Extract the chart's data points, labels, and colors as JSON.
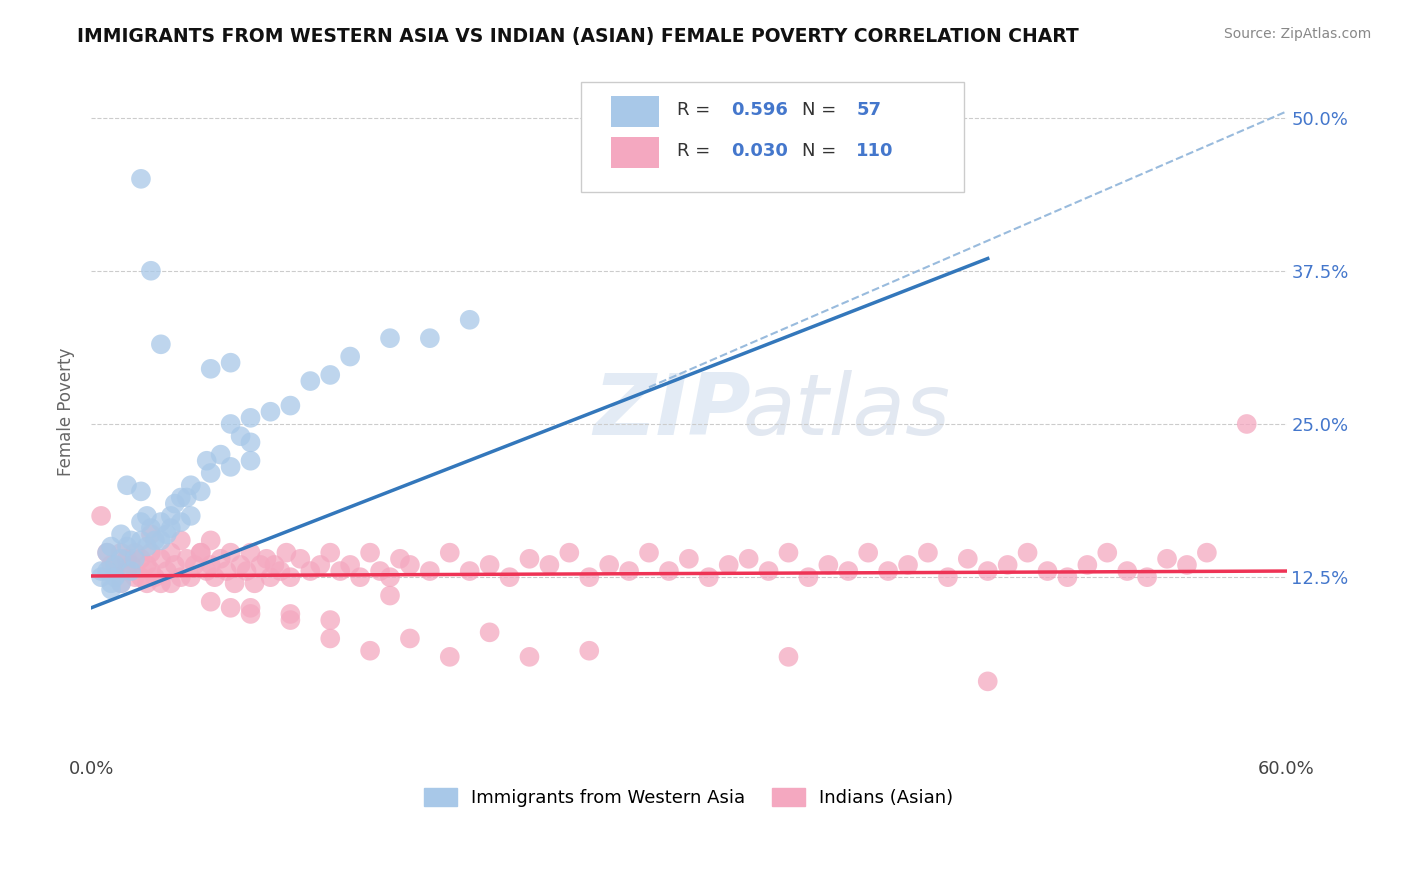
{
  "title": "IMMIGRANTS FROM WESTERN ASIA VS INDIAN (ASIAN) FEMALE POVERTY CORRELATION CHART",
  "source": "Source: ZipAtlas.com",
  "ylabel": "Female Poverty",
  "yticks": [
    0.0,
    0.125,
    0.25,
    0.375,
    0.5
  ],
  "ytick_labels": [
    "",
    "12.5%",
    "25.0%",
    "37.5%",
    "50.0%"
  ],
  "xlim": [
    0.0,
    0.6
  ],
  "ylim": [
    -0.02,
    0.54
  ],
  "legend_label1": "Immigrants from Western Asia",
  "legend_label2": "Indians (Asian)",
  "blue_color": "#a8c8e8",
  "pink_color": "#f4a8c0",
  "blue_line_color": "#3377bb",
  "pink_line_color": "#ee3355",
  "dashed_line_color": "#99bbdd",
  "blue_scatter": [
    [
      0.005,
      0.13
    ],
    [
      0.008,
      0.145
    ],
    [
      0.01,
      0.12
    ],
    [
      0.01,
      0.15
    ],
    [
      0.012,
      0.135
    ],
    [
      0.015,
      0.16
    ],
    [
      0.015,
      0.14
    ],
    [
      0.018,
      0.2
    ],
    [
      0.018,
      0.15
    ],
    [
      0.02,
      0.155
    ],
    [
      0.02,
      0.13
    ],
    [
      0.022,
      0.14
    ],
    [
      0.025,
      0.17
    ],
    [
      0.025,
      0.155
    ],
    [
      0.025,
      0.195
    ],
    [
      0.028,
      0.15
    ],
    [
      0.028,
      0.175
    ],
    [
      0.03,
      0.165
    ],
    [
      0.032,
      0.155
    ],
    [
      0.035,
      0.17
    ],
    [
      0.035,
      0.155
    ],
    [
      0.038,
      0.16
    ],
    [
      0.04,
      0.175
    ],
    [
      0.04,
      0.165
    ],
    [
      0.042,
      0.185
    ],
    [
      0.045,
      0.19
    ],
    [
      0.045,
      0.17
    ],
    [
      0.048,
      0.19
    ],
    [
      0.05,
      0.2
    ],
    [
      0.05,
      0.175
    ],
    [
      0.055,
      0.195
    ],
    [
      0.058,
      0.22
    ],
    [
      0.06,
      0.21
    ],
    [
      0.065,
      0.225
    ],
    [
      0.07,
      0.215
    ],
    [
      0.075,
      0.24
    ],
    [
      0.08,
      0.255
    ],
    [
      0.09,
      0.26
    ],
    [
      0.1,
      0.265
    ],
    [
      0.11,
      0.285
    ],
    [
      0.12,
      0.29
    ],
    [
      0.13,
      0.305
    ],
    [
      0.15,
      0.32
    ],
    [
      0.17,
      0.32
    ],
    [
      0.19,
      0.335
    ],
    [
      0.025,
      0.45
    ],
    [
      0.03,
      0.375
    ],
    [
      0.035,
      0.315
    ],
    [
      0.06,
      0.295
    ],
    [
      0.07,
      0.25
    ],
    [
      0.08,
      0.235
    ],
    [
      0.07,
      0.3
    ],
    [
      0.08,
      0.22
    ],
    [
      0.005,
      0.125
    ],
    [
      0.008,
      0.13
    ],
    [
      0.01,
      0.115
    ],
    [
      0.012,
      0.125
    ],
    [
      0.015,
      0.12
    ]
  ],
  "pink_scatter": [
    [
      0.005,
      0.175
    ],
    [
      0.008,
      0.145
    ],
    [
      0.01,
      0.135
    ],
    [
      0.012,
      0.13
    ],
    [
      0.015,
      0.145
    ],
    [
      0.015,
      0.12
    ],
    [
      0.018,
      0.14
    ],
    [
      0.018,
      0.13
    ],
    [
      0.02,
      0.135
    ],
    [
      0.022,
      0.145
    ],
    [
      0.022,
      0.125
    ],
    [
      0.025,
      0.14
    ],
    [
      0.025,
      0.125
    ],
    [
      0.028,
      0.135
    ],
    [
      0.028,
      0.12
    ],
    [
      0.03,
      0.145
    ],
    [
      0.03,
      0.13
    ],
    [
      0.032,
      0.125
    ],
    [
      0.035,
      0.14
    ],
    [
      0.035,
      0.12
    ],
    [
      0.038,
      0.13
    ],
    [
      0.04,
      0.145
    ],
    [
      0.04,
      0.12
    ],
    [
      0.042,
      0.135
    ],
    [
      0.045,
      0.125
    ],
    [
      0.048,
      0.14
    ],
    [
      0.05,
      0.125
    ],
    [
      0.052,
      0.135
    ],
    [
      0.055,
      0.145
    ],
    [
      0.058,
      0.13
    ],
    [
      0.06,
      0.135
    ],
    [
      0.062,
      0.125
    ],
    [
      0.065,
      0.14
    ],
    [
      0.068,
      0.13
    ],
    [
      0.07,
      0.145
    ],
    [
      0.072,
      0.12
    ],
    [
      0.075,
      0.135
    ],
    [
      0.078,
      0.13
    ],
    [
      0.08,
      0.145
    ],
    [
      0.082,
      0.12
    ],
    [
      0.085,
      0.135
    ],
    [
      0.088,
      0.14
    ],
    [
      0.09,
      0.125
    ],
    [
      0.092,
      0.135
    ],
    [
      0.095,
      0.13
    ],
    [
      0.098,
      0.145
    ],
    [
      0.1,
      0.125
    ],
    [
      0.105,
      0.14
    ],
    [
      0.11,
      0.13
    ],
    [
      0.115,
      0.135
    ],
    [
      0.12,
      0.145
    ],
    [
      0.125,
      0.13
    ],
    [
      0.13,
      0.135
    ],
    [
      0.135,
      0.125
    ],
    [
      0.14,
      0.145
    ],
    [
      0.145,
      0.13
    ],
    [
      0.15,
      0.125
    ],
    [
      0.155,
      0.14
    ],
    [
      0.16,
      0.135
    ],
    [
      0.17,
      0.13
    ],
    [
      0.18,
      0.145
    ],
    [
      0.19,
      0.13
    ],
    [
      0.2,
      0.135
    ],
    [
      0.21,
      0.125
    ],
    [
      0.22,
      0.14
    ],
    [
      0.23,
      0.135
    ],
    [
      0.24,
      0.145
    ],
    [
      0.25,
      0.125
    ],
    [
      0.26,
      0.135
    ],
    [
      0.27,
      0.13
    ],
    [
      0.28,
      0.145
    ],
    [
      0.29,
      0.13
    ],
    [
      0.3,
      0.14
    ],
    [
      0.31,
      0.125
    ],
    [
      0.32,
      0.135
    ],
    [
      0.33,
      0.14
    ],
    [
      0.34,
      0.13
    ],
    [
      0.35,
      0.145
    ],
    [
      0.36,
      0.125
    ],
    [
      0.37,
      0.135
    ],
    [
      0.38,
      0.13
    ],
    [
      0.39,
      0.145
    ],
    [
      0.4,
      0.13
    ],
    [
      0.41,
      0.135
    ],
    [
      0.42,
      0.145
    ],
    [
      0.43,
      0.125
    ],
    [
      0.44,
      0.14
    ],
    [
      0.45,
      0.13
    ],
    [
      0.46,
      0.135
    ],
    [
      0.47,
      0.145
    ],
    [
      0.48,
      0.13
    ],
    [
      0.49,
      0.125
    ],
    [
      0.5,
      0.135
    ],
    [
      0.51,
      0.145
    ],
    [
      0.52,
      0.13
    ],
    [
      0.53,
      0.125
    ],
    [
      0.54,
      0.14
    ],
    [
      0.55,
      0.135
    ],
    [
      0.56,
      0.145
    ],
    [
      0.58,
      0.25
    ],
    [
      0.06,
      0.105
    ],
    [
      0.08,
      0.1
    ],
    [
      0.1,
      0.09
    ],
    [
      0.12,
      0.075
    ],
    [
      0.14,
      0.065
    ],
    [
      0.16,
      0.075
    ],
    [
      0.18,
      0.06
    ],
    [
      0.2,
      0.08
    ],
    [
      0.22,
      0.06
    ],
    [
      0.25,
      0.065
    ],
    [
      0.35,
      0.06
    ],
    [
      0.45,
      0.04
    ],
    [
      0.03,
      0.16
    ],
    [
      0.045,
      0.155
    ],
    [
      0.055,
      0.145
    ],
    [
      0.06,
      0.155
    ],
    [
      0.07,
      0.1
    ],
    [
      0.08,
      0.095
    ],
    [
      0.1,
      0.095
    ],
    [
      0.12,
      0.09
    ],
    [
      0.15,
      0.11
    ]
  ],
  "blue_line": {
    "x0": 0.0,
    "y0": 0.1,
    "x1": 0.45,
    "y1": 0.385
  },
  "pink_line": {
    "x0": 0.0,
    "y0": 0.126,
    "x1": 0.6,
    "y1": 0.13
  },
  "dashed_line": {
    "x0": 0.28,
    "y0": 0.28,
    "x1": 0.6,
    "y1": 0.505
  }
}
